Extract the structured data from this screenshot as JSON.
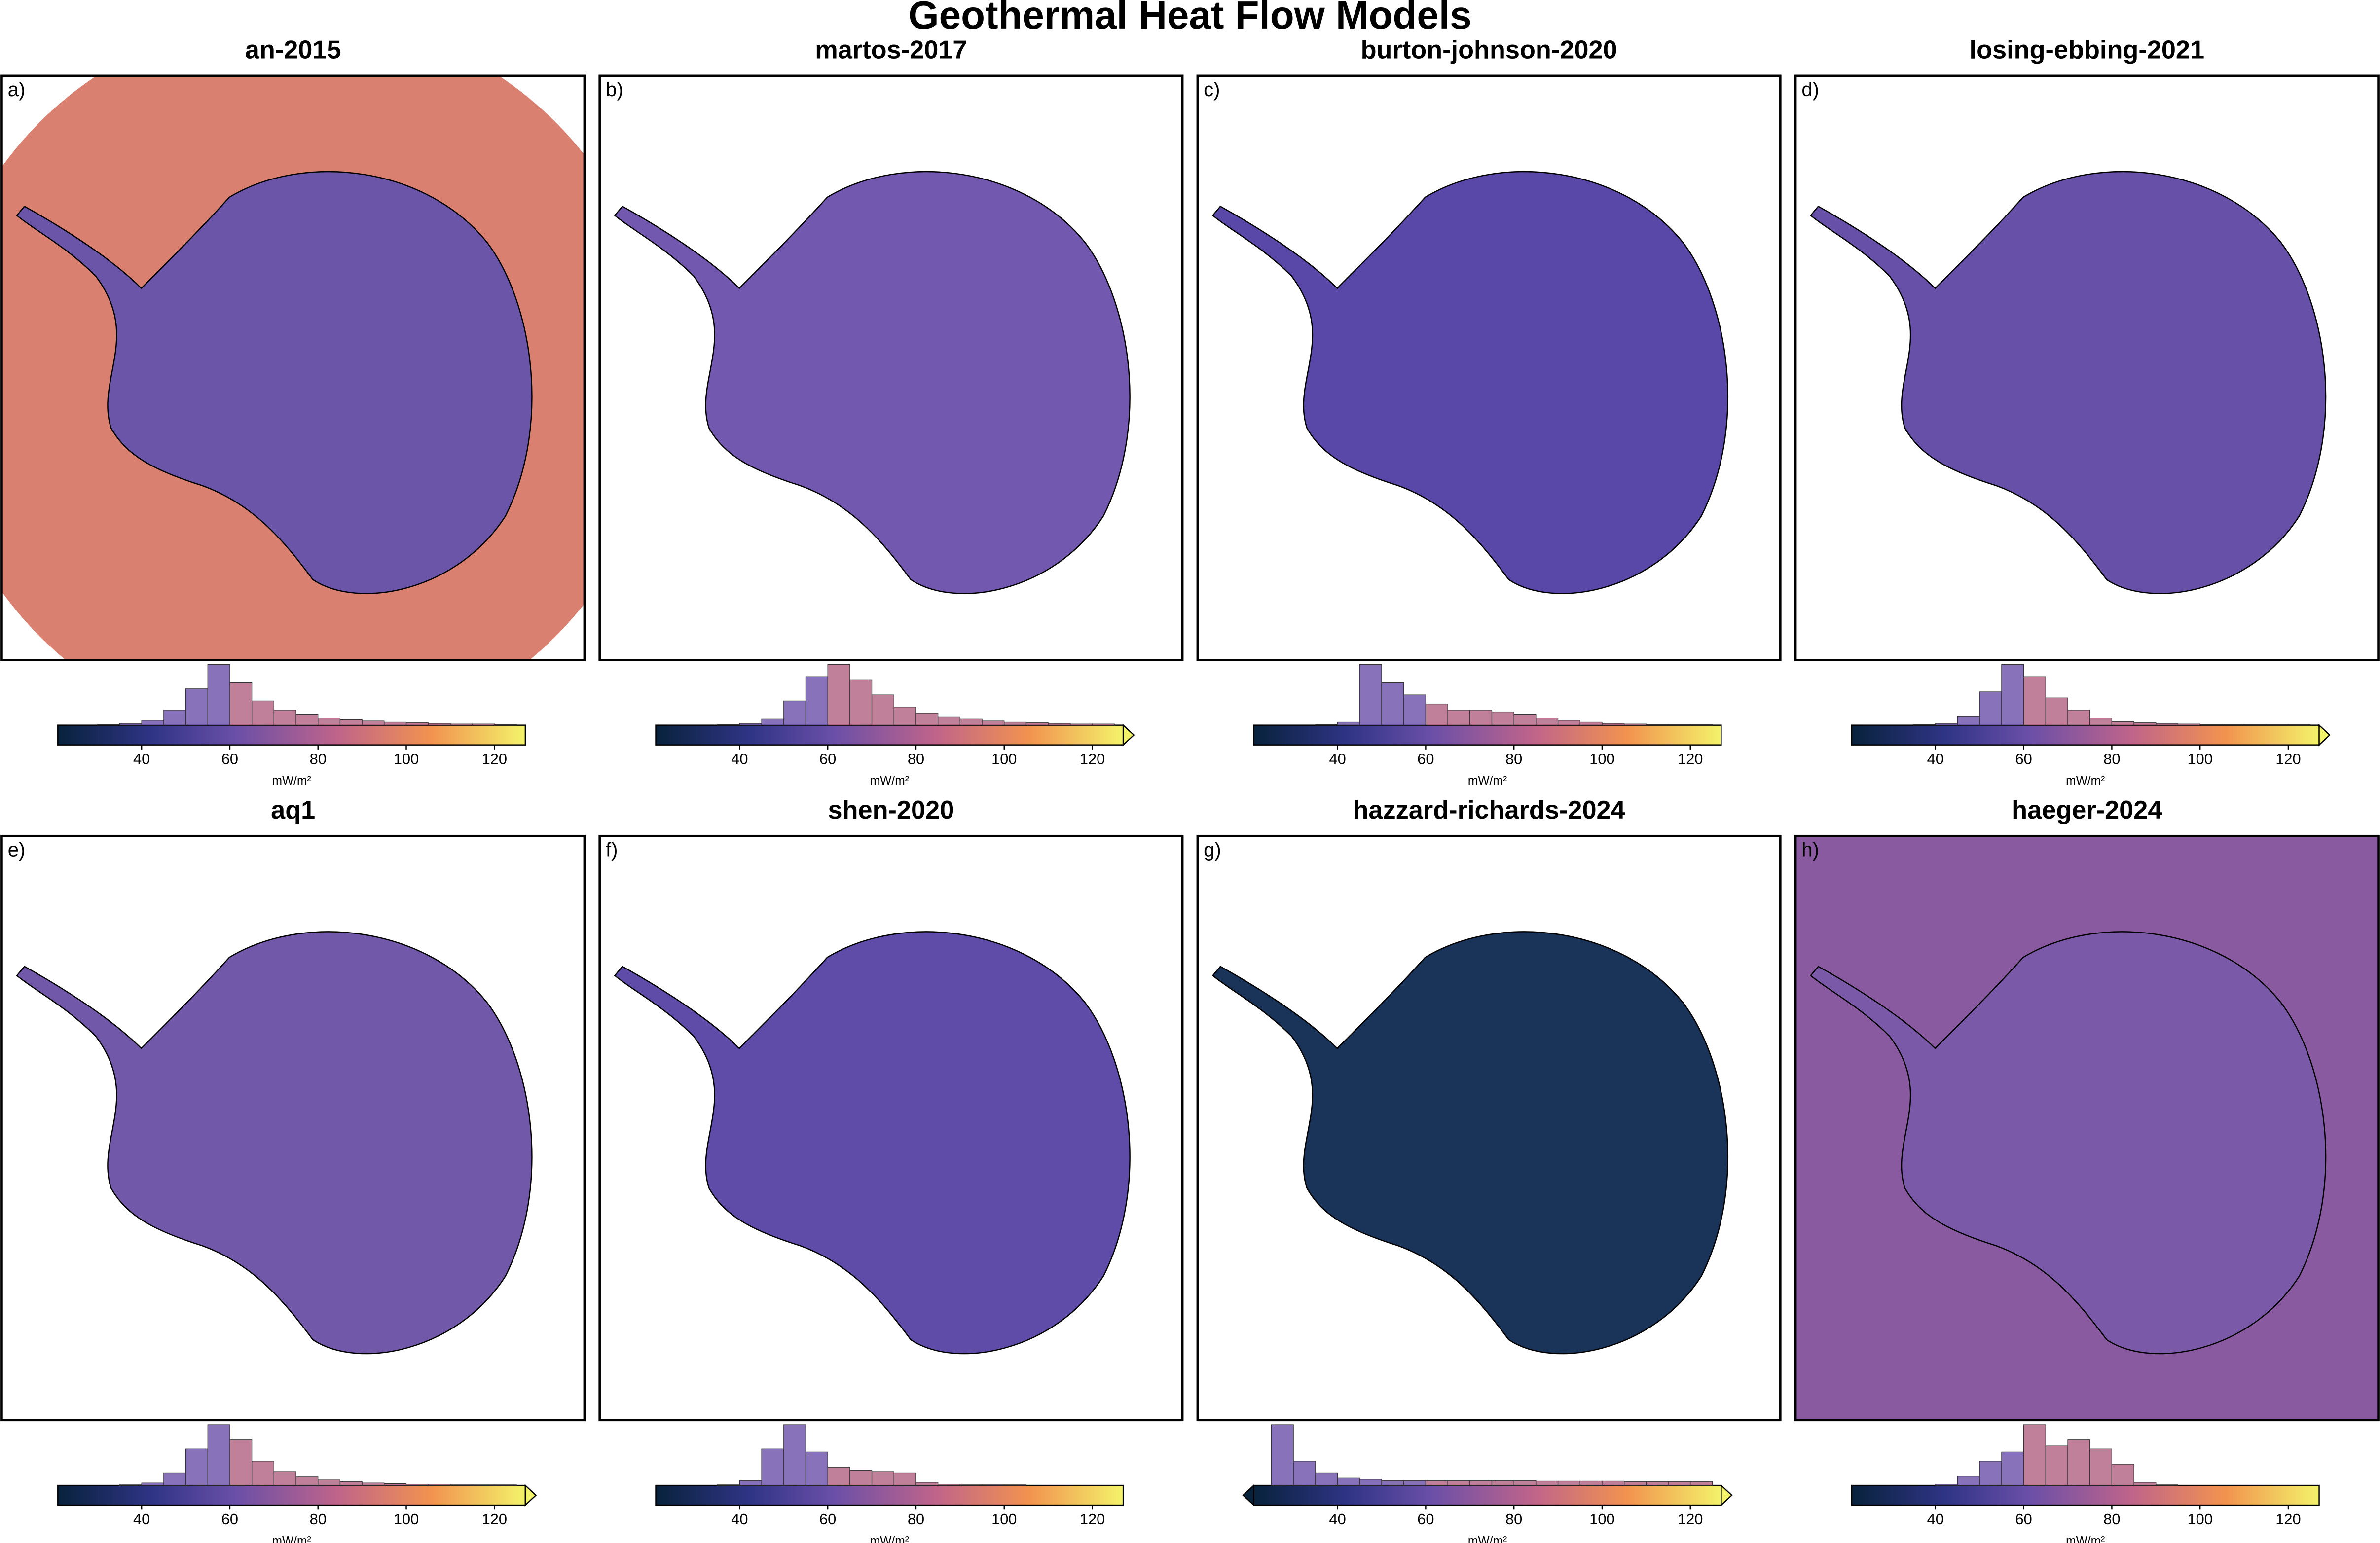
{
  "title": "Geothermal Heat Flow Models",
  "chart_data": [
    {
      "type": "histogram",
      "title": "an-2015",
      "label": "a)",
      "xlabel": "mW/m²",
      "xlim": [
        21,
        127
      ],
      "xticks": [
        40,
        60,
        80,
        100,
        120
      ],
      "extend": "neither",
      "bins": [
        25,
        30,
        35,
        40,
        45,
        50,
        55,
        60,
        65,
        70,
        75,
        80,
        85,
        90,
        95,
        100,
        105,
        110,
        115,
        120,
        125
      ],
      "counts": [
        0,
        1,
        3,
        8,
        25,
        60,
        100,
        70,
        40,
        25,
        18,
        12,
        9,
        7,
        5,
        4,
        3,
        2,
        2,
        1
      ]
    },
    {
      "type": "histogram",
      "title": "martos-2017",
      "label": "b)",
      "xlabel": "mW/m²",
      "xlim": [
        21,
        127
      ],
      "xticks": [
        40,
        60,
        80,
        100,
        120
      ],
      "extend": "max",
      "bins": [
        25,
        30,
        35,
        40,
        45,
        50,
        55,
        60,
        65,
        70,
        75,
        80,
        85,
        90,
        95,
        100,
        105,
        110,
        115,
        120,
        125
      ],
      "counts": [
        0,
        0,
        1,
        3,
        10,
        40,
        80,
        100,
        75,
        50,
        30,
        20,
        14,
        10,
        7,
        5,
        4,
        3,
        2,
        2
      ]
    },
    {
      "type": "histogram",
      "title": "burton-johnson-2020",
      "label": "c)",
      "xlabel": "mW/m²",
      "xlim": [
        21,
        127
      ],
      "xticks": [
        40,
        60,
        80,
        100,
        120
      ],
      "extend": "neither",
      "bins": [
        25,
        30,
        35,
        40,
        45,
        50,
        55,
        60,
        65,
        70,
        75,
        80,
        85,
        90,
        95,
        100,
        105,
        110,
        115,
        120,
        125
      ],
      "counts": [
        0,
        0,
        1,
        5,
        100,
        70,
        50,
        35,
        25,
        25,
        22,
        18,
        12,
        8,
        5,
        3,
        2,
        1,
        1,
        1
      ]
    },
    {
      "type": "histogram",
      "title": "losing-ebbing-2021",
      "label": "d)",
      "xlabel": "mW/m²",
      "xlim": [
        21,
        127
      ],
      "xticks": [
        40,
        60,
        80,
        100,
        120
      ],
      "extend": "max",
      "bins": [
        25,
        30,
        35,
        40,
        45,
        50,
        55,
        60,
        65,
        70,
        75,
        80,
        85,
        90,
        95,
        100,
        105,
        110,
        115,
        120,
        125
      ],
      "counts": [
        0,
        0,
        1,
        3,
        15,
        55,
        100,
        80,
        45,
        25,
        12,
        6,
        4,
        3,
        2,
        1,
        1,
        1,
        1,
        1
      ]
    },
    {
      "type": "histogram",
      "title": "aq1",
      "label": "e)",
      "xlabel": "mW/m²",
      "xlim": [
        21,
        127
      ],
      "xticks": [
        40,
        60,
        80,
        100,
        120
      ],
      "extend": "max",
      "bins": [
        25,
        30,
        35,
        40,
        45,
        50,
        55,
        60,
        65,
        70,
        75,
        80,
        85,
        90,
        95,
        100,
        105,
        110,
        115,
        120,
        125
      ],
      "counts": [
        0,
        0,
        1,
        4,
        20,
        60,
        100,
        75,
        40,
        22,
        14,
        9,
        6,
        4,
        3,
        2,
        2,
        1,
        1,
        1
      ]
    },
    {
      "type": "histogram",
      "title": "shen-2020",
      "label": "f)",
      "xlabel": "mW/m²",
      "xlim": [
        21,
        127
      ],
      "xticks": [
        40,
        60,
        80,
        100,
        120
      ],
      "extend": "neither",
      "bins": [
        25,
        30,
        35,
        40,
        45,
        50,
        55,
        60,
        65,
        70,
        75,
        80,
        85,
        90,
        95,
        100,
        105,
        110,
        115,
        120,
        125
      ],
      "counts": [
        0,
        0,
        1,
        8,
        60,
        100,
        55,
        30,
        25,
        22,
        20,
        5,
        2,
        1,
        1,
        1,
        0,
        0,
        0,
        0
      ]
    },
    {
      "type": "histogram",
      "title": "hazzard-richards-2024",
      "label": "g)",
      "xlabel": "mW/m²",
      "xlim": [
        21,
        127
      ],
      "xticks": [
        40,
        60,
        80,
        100,
        120
      ],
      "extend": "both",
      "bins": [
        25,
        30,
        35,
        40,
        45,
        50,
        55,
        60,
        65,
        70,
        75,
        80,
        85,
        90,
        95,
        100,
        105,
        110,
        115,
        120,
        125
      ],
      "counts": [
        100,
        40,
        20,
        12,
        10,
        8,
        8,
        8,
        8,
        8,
        8,
        8,
        7,
        7,
        7,
        7,
        6,
        6,
        6,
        6
      ]
    },
    {
      "type": "histogram",
      "title": "haeger-2024",
      "label": "h)",
      "xlabel": "mW/m²",
      "xlim": [
        21,
        127
      ],
      "xticks": [
        40,
        60,
        80,
        100,
        120
      ],
      "extend": "neither",
      "bins": [
        25,
        30,
        35,
        40,
        45,
        50,
        55,
        60,
        65,
        70,
        75,
        80,
        85,
        90,
        95,
        100,
        105,
        110,
        115,
        120,
        125
      ],
      "counts": [
        0,
        0,
        0,
        2,
        15,
        40,
        55,
        100,
        65,
        75,
        60,
        35,
        5,
        1,
        0,
        0,
        0,
        0,
        0,
        0
      ]
    }
  ]
}
